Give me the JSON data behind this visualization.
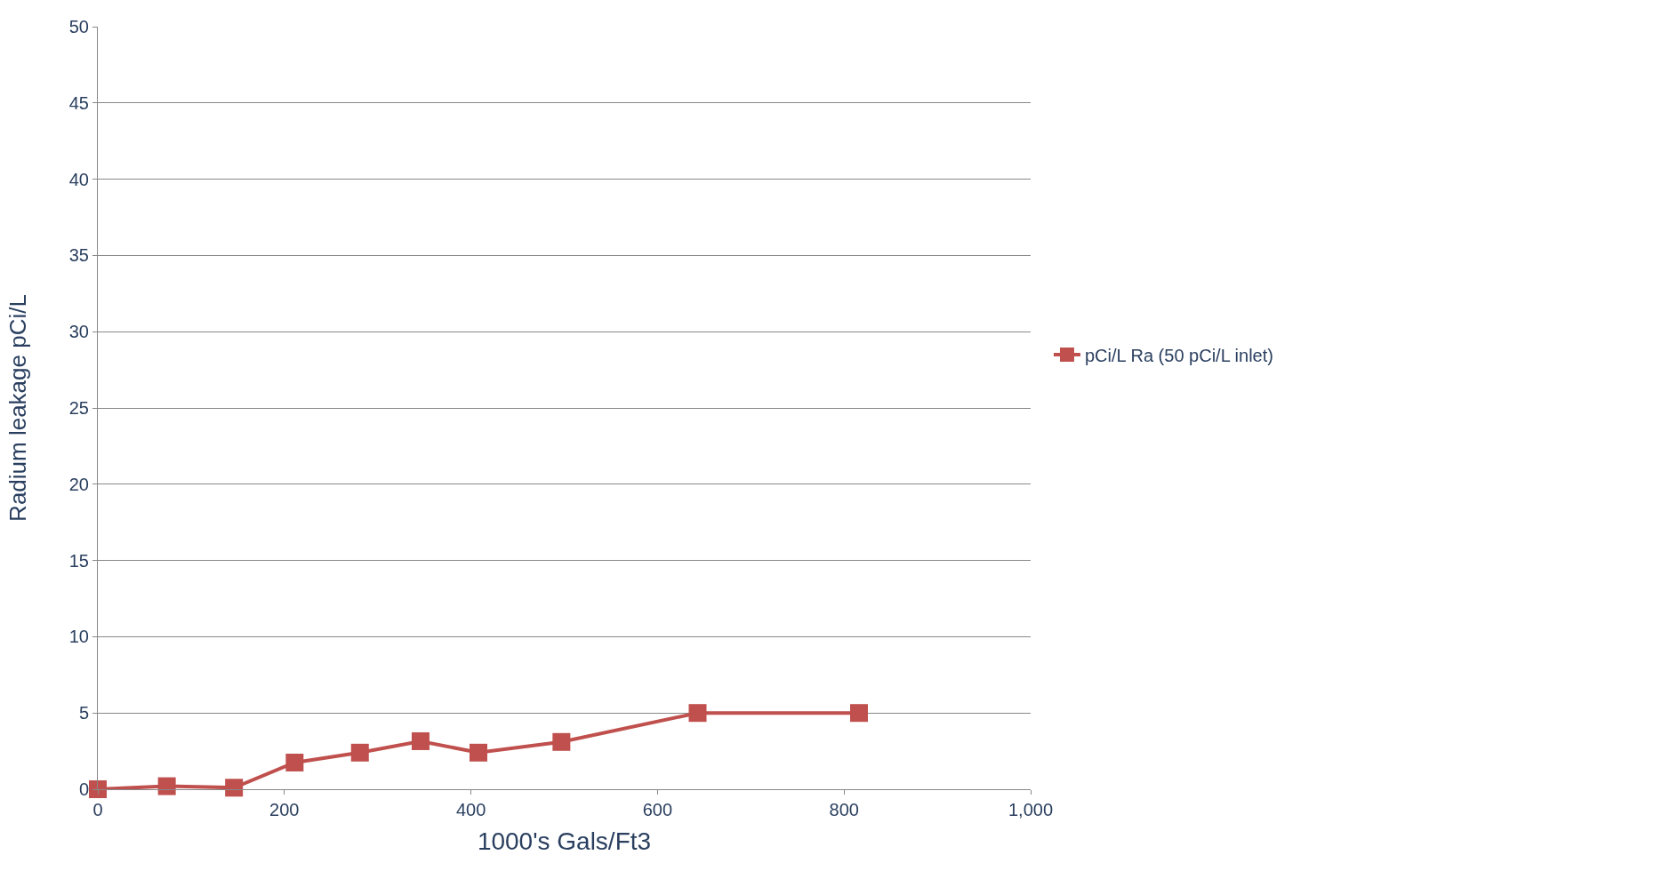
{
  "chart_data": {
    "type": "line",
    "xlabel": "1000's Gals/Ft3",
    "ylabel": "Radium leakage pCi/L",
    "x": [
      0,
      74,
      146,
      211,
      281,
      346,
      408,
      497,
      643,
      816
    ],
    "series": [
      {
        "name": "pCi/L Ra (50 pCi/L inlet)",
        "color": "#c0504d",
        "values": [
          0,
          0.2,
          0.1,
          1.75,
          2.4,
          3.15,
          2.4,
          3.1,
          5,
          5
        ]
      }
    ],
    "xlim": [
      0,
      1000
    ],
    "xticks": [
      0,
      200,
      400,
      600,
      800,
      {
        "value": 1000,
        "label": "1,000"
      }
    ],
    "ylim": [
      0,
      50
    ],
    "yticks": [
      0,
      5,
      10,
      15,
      20,
      25,
      30,
      35,
      40,
      45,
      50
    ],
    "grid": "y",
    "legend": "right",
    "marker": "square",
    "line_style": "solid"
  }
}
